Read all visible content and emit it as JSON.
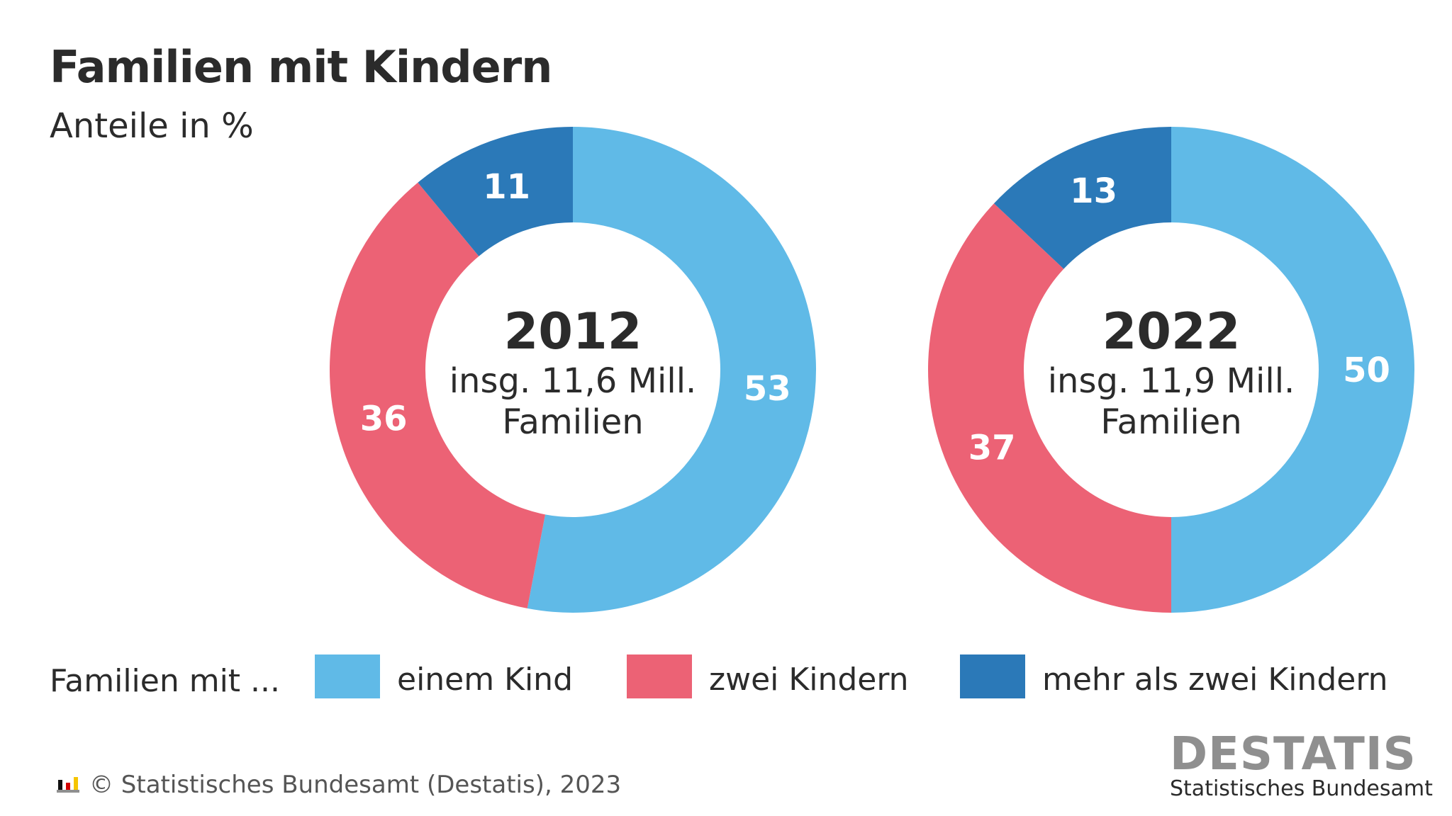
{
  "header": {
    "title": "Familien mit Kindern",
    "subtitle": "Anteile in %"
  },
  "chart_data": [
    {
      "type": "pie",
      "title": "2012",
      "center_line2": "insg. 11,6 Mill.",
      "center_line3": "Familien",
      "categories": [
        "einem Kind",
        "zwei Kindern",
        "mehr als zwei Kindern"
      ],
      "values": [
        53,
        36,
        11
      ]
    },
    {
      "type": "pie",
      "title": "2022",
      "center_line2": "insg. 11,9 Mill.",
      "center_line3": "Familien",
      "categories": [
        "einem Kind",
        "zwei Kindern",
        "mehr als zwei Kindern"
      ],
      "values": [
        50,
        37,
        13
      ]
    }
  ],
  "colors": {
    "einem Kind": "#60baE7",
    "zwei Kindern": "#ec6275",
    "mehr als zwei Kindern": "#2b79b8"
  },
  "legend": {
    "title": "Familien mit ...",
    "items": [
      {
        "label": "einem Kind",
        "color": "#60bae7"
      },
      {
        "label": "zwei Kindern",
        "color": "#ec6275"
      },
      {
        "label": "mehr als zwei Kindern",
        "color": "#2b79b8"
      }
    ]
  },
  "footer": {
    "text": "© Statistisches Bundesamt (Destatis), 2023"
  },
  "logo": {
    "wordmark": "DESTATIS",
    "tagline": "Statistisches Bundesamt"
  }
}
